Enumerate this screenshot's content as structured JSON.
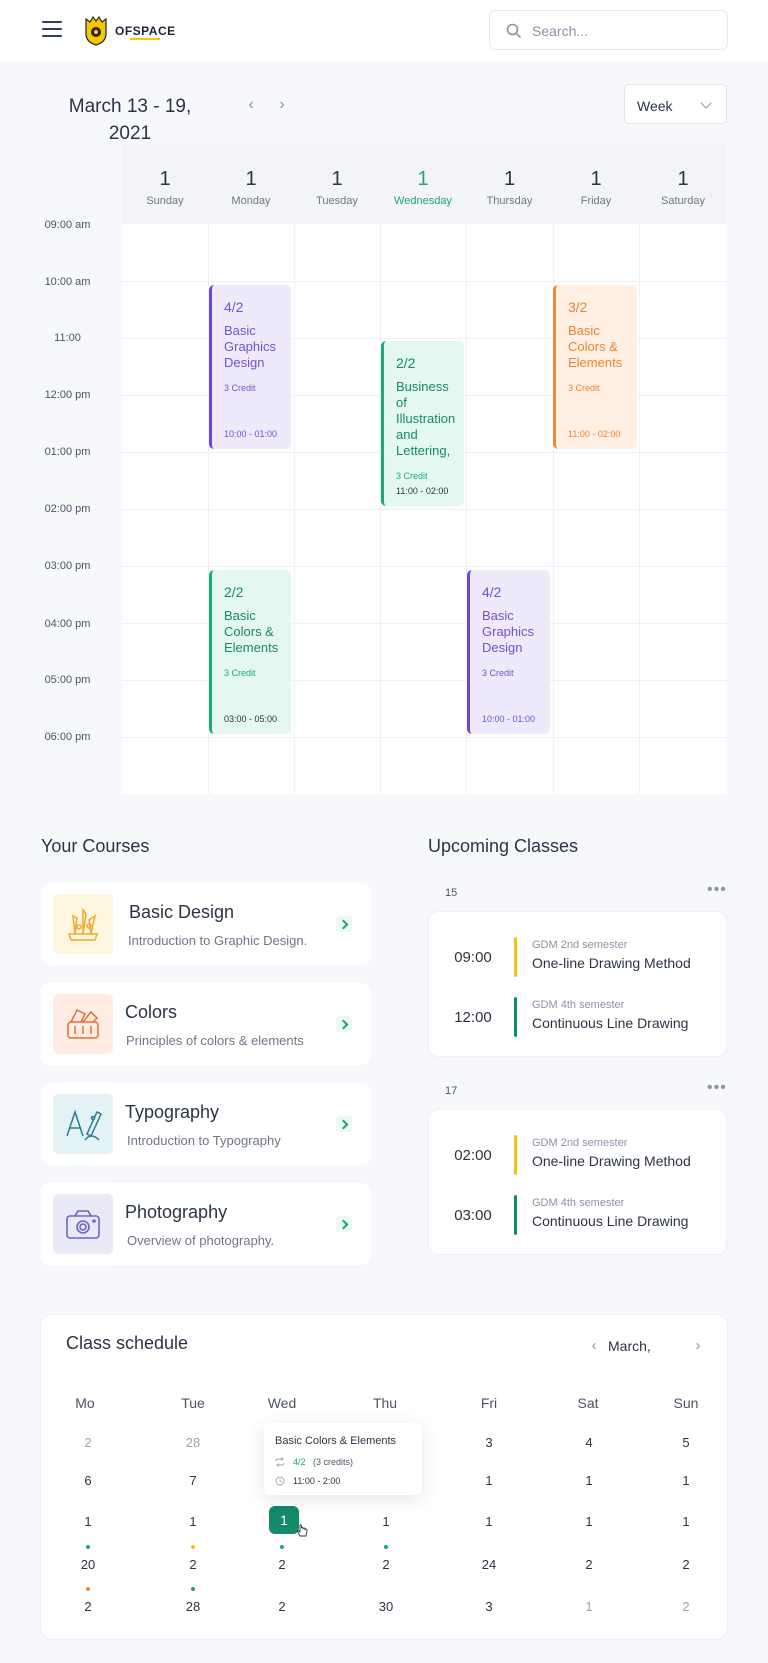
{
  "header": {
    "brand": "OFSPACE",
    "search_placeholder": "Search..."
  },
  "calendar": {
    "range_title": "March 13 - 19, 2021",
    "view": "Week",
    "days": [
      {
        "num": "1",
        "name": "Sunday"
      },
      {
        "num": "1",
        "name": "Monday"
      },
      {
        "num": "1",
        "name": "Tuesday"
      },
      {
        "num": "1",
        "name": "Wednesday"
      },
      {
        "num": "1",
        "name": "Thursday"
      },
      {
        "num": "1",
        "name": "Friday"
      },
      {
        "num": "1",
        "name": "Saturday"
      }
    ],
    "times": [
      "09:00 am",
      "10:00 am",
      "11:00",
      "12:00 pm",
      "01:00 pm",
      "02:00 pm",
      "03:00 pm",
      "04:00 pm",
      "05:00 pm",
      "06:00 pm"
    ],
    "events": [
      {
        "count": "4/2",
        "title": "Basic Graphics Design",
        "credit": "3 Credit",
        "time": "10:00 - 01:00"
      },
      {
        "count": "2/2",
        "title": "Business of Illustration and Lettering,",
        "credit": "3 Credit",
        "time": "11:00 - 02:00"
      },
      {
        "count": "3/2",
        "title": "Basic Colors & Elements",
        "credit": "3 Credit",
        "time": "11:00 - 02:00"
      },
      {
        "count": "2/2",
        "title": "Basic Colors & Elements",
        "credit": "3 Credit",
        "time": "03:00 - 05:00"
      },
      {
        "count": "4/2",
        "title": "Basic Graphics Design",
        "credit": "3 Credit",
        "time": "10:00 - 01:00"
      }
    ]
  },
  "courses": {
    "title": "Your Courses",
    "items": [
      {
        "title": "Basic Design",
        "subtitle": "Introduction to Graphic Design."
      },
      {
        "title": "Colors",
        "subtitle": "Principles of colors & elements"
      },
      {
        "title": "Typography",
        "subtitle": "Introduction to Typography"
      },
      {
        "title": "Photography",
        "subtitle": "Overview of photography."
      }
    ]
  },
  "upcoming": {
    "title": "Upcoming Classes",
    "groups": [
      {
        "date": "15",
        "items": [
          {
            "time": "09:00",
            "semester": "GDM 2nd semester",
            "name": "One-line Drawing Method"
          },
          {
            "time": "12:00",
            "semester": "GDM 4th semester",
            "name": "Continuous Line Drawing"
          }
        ]
      },
      {
        "date": "17",
        "items": [
          {
            "time": "02:00",
            "semester": "GDM 2nd semester",
            "name": "One-line Drawing Method"
          },
          {
            "time": "03:00",
            "semester": "GDM 4th semester",
            "name": "Continuous Line Drawing"
          }
        ]
      }
    ]
  },
  "schedule": {
    "title": "Class schedule",
    "month": "March,",
    "weekdays": [
      "Mo",
      "Tue",
      "Wed",
      "Thu",
      "Fri",
      "Sat",
      "Sun"
    ],
    "rows": [
      [
        "2",
        "28",
        "",
        "",
        "3",
        "4",
        "5"
      ],
      [
        "6",
        "7",
        "",
        "",
        "1",
        "1",
        "1"
      ],
      [
        "1",
        "1",
        "1",
        "1",
        "1",
        "1",
        "1"
      ],
      [
        "20",
        "2",
        "2",
        "2",
        "24",
        "2",
        "2"
      ],
      [
        "2",
        "28",
        "2",
        "30",
        "3",
        "1",
        "2"
      ]
    ],
    "tooltip": {
      "title": "Basic Colors & Elements",
      "count": "4/2",
      "credits": "(3 credits)",
      "time": "11:00 - 2:00"
    },
    "colors": {
      "green": "#1aa37a",
      "yellow": "#f5c21b",
      "orange": "#f08a2e"
    }
  }
}
